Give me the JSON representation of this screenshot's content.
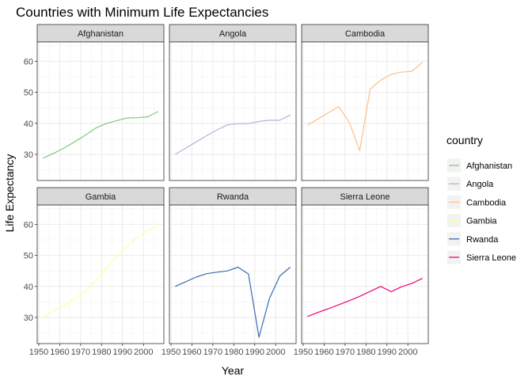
{
  "chart_data": {
    "type": "line",
    "title": "Countries with Minimum Life Expectancies",
    "xlabel": "Year",
    "ylabel": "Life Expectancy",
    "legend_title": "country",
    "legend_position": "right",
    "facet_layout": "2x3",
    "grid": true,
    "xlim": [
      1952,
      2007
    ],
    "ylim": [
      23.6,
      64.2
    ],
    "x_ticks": [
      1950,
      1960,
      1970,
      1980,
      1990,
      2000
    ],
    "x_tick_labels": [
      "1950",
      "1960",
      "1970",
      "1980",
      "1990",
      "2000"
    ],
    "y_ticks": [
      30,
      40,
      50,
      60
    ],
    "y_tick_labels": [
      "30",
      "40",
      "50",
      "60"
    ],
    "x": [
      1952,
      1957,
      1962,
      1967,
      1972,
      1977,
      1982,
      1987,
      1992,
      1997,
      2002,
      2007
    ],
    "series": [
      {
        "name": "Afghanistan",
        "color": "#7fc97f",
        "values": [
          28.8,
          30.3,
          32.0,
          34.0,
          36.1,
          38.4,
          39.9,
          40.8,
          41.7,
          41.8,
          42.1,
          43.8
        ]
      },
      {
        "name": "Angola",
        "color": "#beaed4",
        "values": [
          30.0,
          32.0,
          34.0,
          36.0,
          37.9,
          39.5,
          39.9,
          39.9,
          40.6,
          41.0,
          41.0,
          42.7
        ]
      },
      {
        "name": "Cambodia",
        "color": "#fdc086",
        "values": [
          39.4,
          41.4,
          43.4,
          45.4,
          40.3,
          31.2,
          51.0,
          53.9,
          55.8,
          56.5,
          56.8,
          59.7
        ]
      },
      {
        "name": "Gambia",
        "color": "#ffff99",
        "values": [
          30.0,
          32.1,
          33.9,
          35.9,
          38.3,
          41.8,
          45.6,
          49.3,
          52.6,
          55.9,
          58.0,
          59.4
        ]
      },
      {
        "name": "Rwanda",
        "color": "#386cb0",
        "values": [
          40.0,
          41.5,
          43.0,
          44.1,
          44.6,
          45.0,
          46.2,
          44.0,
          23.6,
          36.1,
          43.4,
          46.2
        ]
      },
      {
        "name": "Sierra Leone",
        "color": "#f0027f",
        "values": [
          30.3,
          31.6,
          32.8,
          34.1,
          35.4,
          36.8,
          38.4,
          40.0,
          38.3,
          39.9,
          41.0,
          42.6
        ]
      }
    ]
  }
}
